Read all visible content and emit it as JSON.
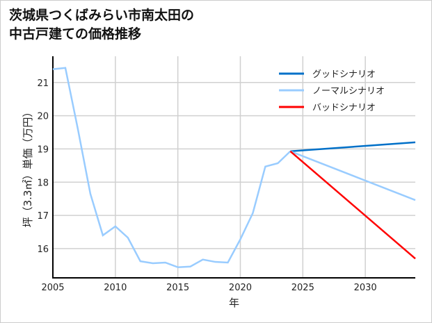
{
  "chart_data": {
    "type": "line",
    "title_lines": [
      "茨城県つくばみらい市南太田の",
      "中古戸建ての価格推移"
    ],
    "xlabel": "年",
    "ylabel": "坪（3.3㎡）単価（万円）",
    "xlim": [
      2005,
      2034
    ],
    "ylim": [
      15.12,
      21.79
    ],
    "xticks": [
      2005,
      2010,
      2015,
      2020,
      2025,
      2030
    ],
    "yticks": [
      16,
      17,
      18,
      19,
      20,
      21
    ],
    "grid": true,
    "legend_position": "top-right",
    "history": {
      "x": [
        2005,
        2006,
        2007,
        2008,
        2009,
        2010,
        2011,
        2012,
        2013,
        2014,
        2015,
        2016,
        2017,
        2018,
        2019,
        2020,
        2021,
        2022,
        2023,
        2024
      ],
      "y": [
        21.4,
        21.44,
        19.6,
        17.65,
        16.4,
        16.67,
        16.33,
        15.62,
        15.56,
        15.58,
        15.44,
        15.46,
        15.67,
        15.6,
        15.58,
        16.28,
        17.07,
        18.47,
        18.57,
        18.93
      ],
      "color": "#99ccff"
    },
    "series": [
      {
        "name": "グッドシナリオ",
        "x": [
          2024,
          2034
        ],
        "y": [
          18.93,
          19.2
        ],
        "color": "#0070c8"
      },
      {
        "name": "ノーマルシナリオ",
        "x": [
          2024,
          2034
        ],
        "y": [
          18.93,
          17.46
        ],
        "color": "#99ccff"
      },
      {
        "name": "バッドシナリオ",
        "x": [
          2024,
          2034
        ],
        "y": [
          18.93,
          15.7
        ],
        "color": "#ff0000"
      }
    ]
  }
}
